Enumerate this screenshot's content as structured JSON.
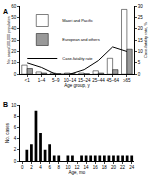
{
  "chart_data": [
    {
      "type": "bar",
      "title": "A",
      "categories": [
        "<1",
        "1–4",
        "5–9",
        "10–14",
        "15–24",
        "25–44",
        "45–64",
        "≥65"
      ],
      "series": [
        {
          "name": "Maori and Pacific",
          "color": "#ffffff",
          "values": [
            8,
            2,
            1,
            1,
            1,
            3,
            14,
            57
          ]
        },
        {
          "name": "European and others",
          "color": "#999999",
          "values": [
            5,
            1,
            0.5,
            0.5,
            0.5,
            1,
            4,
            22
          ]
        },
        {
          "name": "Case-fatality rate",
          "type": "line",
          "axis": "y2",
          "color": "#000000",
          "values": [
            5,
            3,
            0,
            0,
            2,
            6,
            12,
            10
          ]
        }
      ],
      "xlabel": "Age group, y",
      "ylabel": "No. cases/100,000 population",
      "y2label": "Case-fatality rate, %",
      "ylim": [
        0,
        60
      ],
      "yticks": [
        0,
        10,
        20,
        30,
        40,
        50,
        60
      ],
      "y2lim": [
        0,
        30
      ],
      "y2ticks": [
        0,
        5,
        10,
        15,
        20,
        25,
        30
      ],
      "legend": "upper left"
    },
    {
      "type": "bar",
      "title": "B",
      "x": [
        0,
        1,
        2,
        3,
        4,
        5,
        6,
        7,
        8,
        9,
        10,
        11,
        12,
        13,
        14,
        15,
        16,
        17,
        18,
        19,
        20,
        21,
        22,
        23,
        24
      ],
      "values": [
        0,
        2,
        3,
        9,
        5,
        2,
        3,
        1,
        1,
        0,
        1,
        1,
        0,
        1,
        1,
        1,
        1,
        1,
        1,
        1,
        1,
        1,
        1,
        1,
        1
      ],
      "color": "#000000",
      "xlabel": "Age, mo",
      "ylabel": "No. cases",
      "xlim": [
        -0.5,
        24.5
      ],
      "xticks": [
        0,
        2,
        4,
        6,
        8,
        10,
        12,
        14,
        16,
        18,
        20,
        22,
        24
      ],
      "ylim": [
        0,
        10
      ],
      "yticks": [
        0,
        2,
        4,
        6,
        8,
        10
      ]
    }
  ]
}
